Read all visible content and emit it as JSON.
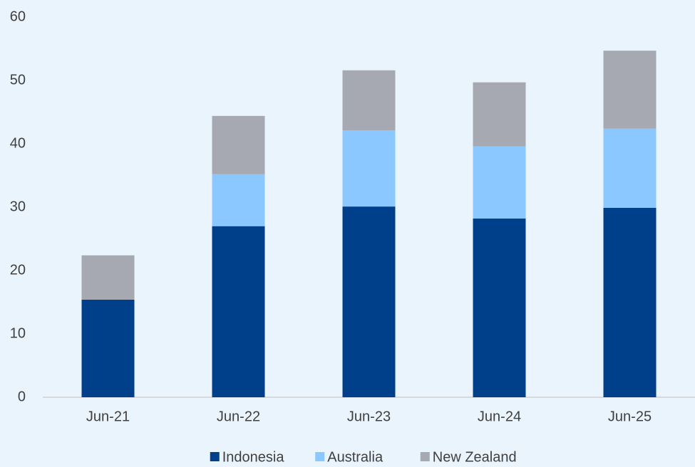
{
  "chart_data": {
    "type": "stacked_bar",
    "categories": [
      "Jun-21",
      "Jun-22",
      "Jun-23",
      "Jun-24",
      "Jun-25"
    ],
    "series": [
      {
        "name": "Indonesia",
        "color": "#003f8a",
        "values": [
          15.4,
          27.0,
          30.1,
          28.2,
          29.9
        ]
      },
      {
        "name": "Australia",
        "color": "#8ac8ff",
        "values": [
          0,
          8.2,
          12.0,
          11.4,
          12.5
        ]
      },
      {
        "name": "New Zealand",
        "color": "#a6a9b1",
        "values": [
          7.0,
          9.2,
          9.5,
          10.1,
          12.3
        ]
      }
    ],
    "ylim": [
      0,
      60
    ],
    "yticks": [
      0,
      10,
      20,
      30,
      40,
      50,
      60
    ],
    "grid": false,
    "legend": "bottom"
  }
}
